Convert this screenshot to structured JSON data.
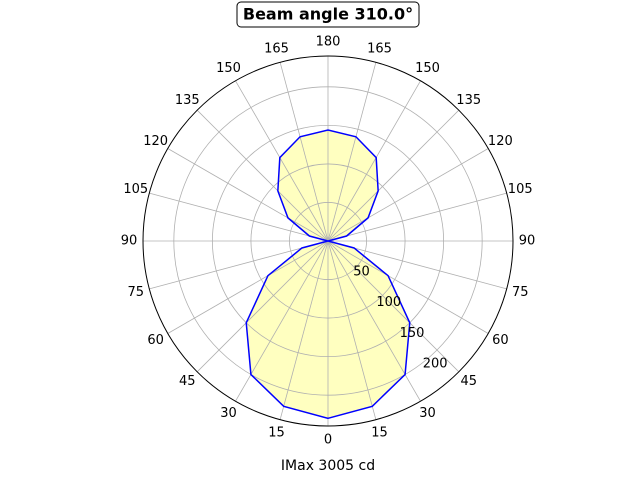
{
  "chart_data": {
    "type": "polar",
    "title": "Beam angle 310.0°",
    "xlabel": "IMax 3005 cd",
    "x": [
      0,
      15,
      30,
      45,
      60,
      75,
      90,
      105,
      120,
      135,
      150,
      165,
      180,
      195,
      210,
      225,
      240,
      255,
      270,
      285,
      300,
      315,
      330,
      345
    ],
    "series": [
      {
        "color": "#0000ff",
        "fill": "#ffffc0",
        "values": [
          230,
          222,
          200,
          150,
          90,
          35,
          0,
          25,
          60,
          92,
          125,
          140,
          144,
          140,
          125,
          92,
          60,
          25,
          0,
          35,
          90,
          150,
          200,
          222
        ]
      }
    ],
    "xlim": [
      0,
      360
    ],
    "xticks": [
      0,
      15,
      30,
      45,
      60,
      75,
      90,
      105,
      120,
      135,
      150,
      165,
      180,
      {
        "value": 195,
        "label": "165"
      },
      {
        "value": 210,
        "label": "150"
      },
      {
        "value": 225,
        "label": "135"
      },
      {
        "value": 240,
        "label": "120"
      },
      {
        "value": 255,
        "label": "105"
      },
      {
        "value": 270,
        "label": "90"
      },
      {
        "value": 285,
        "label": "75"
      },
      {
        "value": 300,
        "label": "60"
      },
      {
        "value": 315,
        "label": "45"
      },
      {
        "value": 330,
        "label": "30"
      },
      {
        "value": 345,
        "label": "15"
      }
    ],
    "ylim": [
      0,
      240
    ],
    "yticks": [
      50,
      100,
      150,
      200
    ],
    "grid": true
  }
}
